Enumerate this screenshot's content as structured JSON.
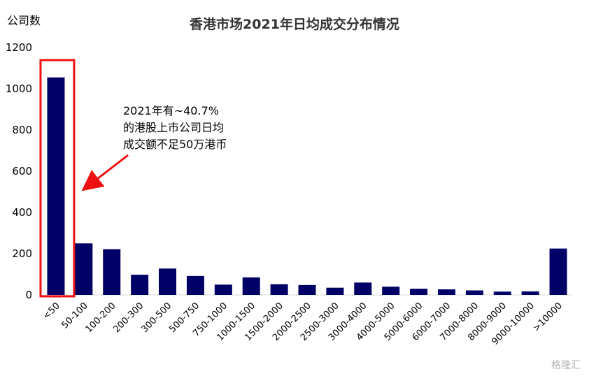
{
  "chart_data": {
    "type": "bar",
    "title": "香港市场2021年日均成交分布情况",
    "ylabel": "公司数",
    "xlabel": "",
    "ylim": [
      0,
      1200
    ],
    "yticks": [
      0,
      200,
      400,
      600,
      800,
      1000,
      1200
    ],
    "grid": false,
    "categories": [
      "<50",
      "50-100",
      "100-200",
      "200-300",
      "300-500",
      "500-750",
      "750-1000",
      "1000-1500",
      "1500-2000",
      "2000-2500",
      "2500-3000",
      "3000-4000",
      "4000-5000",
      "5000-6000",
      "6000-7000",
      "7000-8000",
      "8000-9000",
      "9000-10000",
      ">10000"
    ],
    "values": [
      1055,
      250,
      222,
      98,
      128,
      92,
      50,
      85,
      52,
      48,
      35,
      60,
      40,
      30,
      27,
      22,
      16,
      17,
      225
    ],
    "bar_color": "#000066",
    "highlight_color": "#ee1111",
    "annotation": {
      "lines": [
        "2021年有~40.7%",
        "的港股上市公司日均",
        "成交额不足50万港币"
      ]
    }
  },
  "watermark": "格隆汇"
}
